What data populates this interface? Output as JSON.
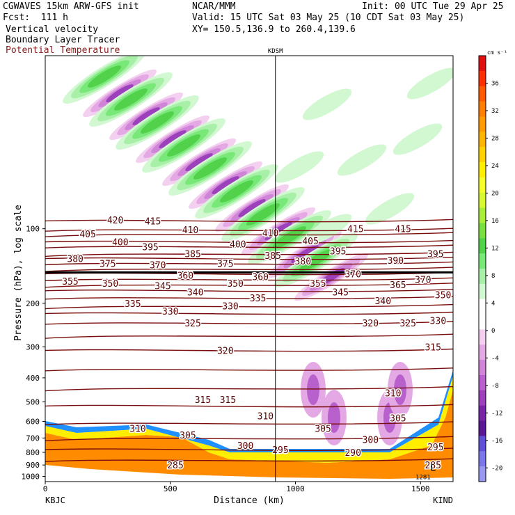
{
  "header": {
    "model_title": "CGWAVES 15km ARW-GFS init",
    "forecast_hour": "Fcst:  111 h",
    "field_1": "Vertical velocity",
    "field_2": "Boundary Layer Tracer",
    "field_3": "Potential Temperature",
    "center": "NCAR/MMM",
    "valid": "Valid: 15 UTC Sat 03 May 25 (10 CDT Sat 03 May 25)",
    "xy": "XY= 150.5,136.9 to 260.4,139.6",
    "init": "Init: 00 UTC Tue 29 Apr 25"
  },
  "colors": {
    "theta_contour": "#7a0c0c",
    "tracer_contour": "#000000"
  },
  "chart_data": {
    "type": "heatmap",
    "title": "",
    "xlabel": "Distance (km)",
    "ylabel": "Pressure (hPa), log scale",
    "x_ticks": [
      0,
      500,
      1000,
      1500
    ],
    "xlim": [
      0,
      1630
    ],
    "y_ticks": [
      100,
      200,
      300,
      400,
      500,
      600,
      700,
      800,
      900,
      1000
    ],
    "y_scale": "log",
    "ylim": [
      1050,
      20
    ],
    "left_endpoint": "KBJC",
    "right_endpoint": "KIND",
    "marker_station": "KDSM",
    "marker_x": 920,
    "colorbar": {
      "unit": "cm s⁻¹",
      "ticks": [
        36,
        32,
        28,
        24,
        20,
        16,
        12,
        8,
        4,
        0,
        -4,
        -8,
        -12,
        -16,
        -20
      ],
      "colors": [
        "#e01010",
        "#ff3000",
        "#ff5a00",
        "#ff7d00",
        "#ff9a00",
        "#ffb400",
        "#ffd200",
        "#ffee00",
        "#f6ff2a",
        "#d8f830",
        "#a8ee38",
        "#7ae040",
        "#52d24a",
        "#78e878",
        "#a8f0a8",
        "#d2f8d2",
        "#ffffff",
        "#ffffff",
        "#f4d0f0",
        "#e4a8e4",
        "#d084d8",
        "#b860cc",
        "#9c40bc",
        "#7a24a8",
        "#5a1896",
        "#6050d8",
        "#7a78e8",
        "#9898f0"
      ]
    },
    "theta_labels": [
      {
        "x": 520,
        "p": 900,
        "v": "285"
      },
      {
        "x": 1550,
        "p": 900,
        "v": "285"
      },
      {
        "x": 1230,
        "p": 800,
        "v": "290"
      },
      {
        "x": 940,
        "p": 780,
        "v": "295"
      },
      {
        "x": 1560,
        "p": 760,
        "v": "295"
      },
      {
        "x": 800,
        "p": 750,
        "v": "300"
      },
      {
        "x": 1300,
        "p": 710,
        "v": "300"
      },
      {
        "x": 570,
        "p": 680,
        "v": "305"
      },
      {
        "x": 1110,
        "p": 640,
        "v": "305"
      },
      {
        "x": 1410,
        "p": 580,
        "v": "305"
      },
      {
        "x": 370,
        "p": 640,
        "v": "310"
      },
      {
        "x": 880,
        "p": 570,
        "v": "310"
      },
      {
        "x": 1390,
        "p": 460,
        "v": "310"
      },
      {
        "x": 630,
        "p": 490,
        "v": "315"
      },
      {
        "x": 730,
        "p": 490,
        "v": "315"
      },
      {
        "x": 1550,
        "p": 300,
        "v": "315"
      },
      {
        "x": 720,
        "p": 310,
        "v": "320"
      },
      {
        "x": 1300,
        "p": 240,
        "v": "320"
      },
      {
        "x": 590,
        "p": 240,
        "v": "325"
      },
      {
        "x": 1450,
        "p": 240,
        "v": "325"
      },
      {
        "x": 500,
        "p": 215,
        "v": "330"
      },
      {
        "x": 740,
        "p": 205,
        "v": "330"
      },
      {
        "x": 1570,
        "p": 235,
        "v": "330"
      },
      {
        "x": 350,
        "p": 200,
        "v": "335"
      },
      {
        "x": 850,
        "p": 190,
        "v": "335"
      },
      {
        "x": 600,
        "p": 180,
        "v": "340"
      },
      {
        "x": 1350,
        "p": 195,
        "v": "340"
      },
      {
        "x": 470,
        "p": 170,
        "v": "345"
      },
      {
        "x": 1180,
        "p": 180,
        "v": "345"
      },
      {
        "x": 260,
        "p": 166,
        "v": "350"
      },
      {
        "x": 760,
        "p": 166,
        "v": "350"
      },
      {
        "x": 1590,
        "p": 185,
        "v": "350"
      },
      {
        "x": 100,
        "p": 163,
        "v": "355"
      },
      {
        "x": 1090,
        "p": 166,
        "v": "355"
      },
      {
        "x": 560,
        "p": 154,
        "v": "360"
      },
      {
        "x": 860,
        "p": 156,
        "v": "360"
      },
      {
        "x": 1410,
        "p": 168,
        "v": "365"
      },
      {
        "x": 450,
        "p": 140,
        "v": "370"
      },
      {
        "x": 1230,
        "p": 152,
        "v": "370"
      },
      {
        "x": 1510,
        "p": 160,
        "v": "370"
      },
      {
        "x": 250,
        "p": 138,
        "v": "375"
      },
      {
        "x": 720,
        "p": 138,
        "v": "375"
      },
      {
        "x": 120,
        "p": 132,
        "v": "380"
      },
      {
        "x": 1030,
        "p": 135,
        "v": "380"
      },
      {
        "x": 590,
        "p": 126,
        "v": "385"
      },
      {
        "x": 910,
        "p": 128,
        "v": "385"
      },
      {
        "x": 1400,
        "p": 134,
        "v": "390"
      },
      {
        "x": 420,
        "p": 118,
        "v": "395"
      },
      {
        "x": 1170,
        "p": 123,
        "v": "395"
      },
      {
        "x": 1560,
        "p": 126,
        "v": "395"
      },
      {
        "x": 300,
        "p": 113,
        "v": "400"
      },
      {
        "x": 770,
        "p": 115,
        "v": "400"
      },
      {
        "x": 170,
        "p": 105,
        "v": "405"
      },
      {
        "x": 1060,
        "p": 112,
        "v": "405"
      },
      {
        "x": 580,
        "p": 101,
        "v": "410"
      },
      {
        "x": 900,
        "p": 104,
        "v": "410"
      },
      {
        "x": 430,
        "p": 93,
        "v": "415"
      },
      {
        "x": 1240,
        "p": 100,
        "v": "415"
      },
      {
        "x": 1430,
        "p": 100,
        "v": "415"
      },
      {
        "x": 280,
        "p": 92,
        "v": "420"
      }
    ],
    "tracer_label": {
      "x": 1510,
      "p": 1000,
      "v": "1281"
    },
    "annotations": [
      "L"
    ]
  }
}
